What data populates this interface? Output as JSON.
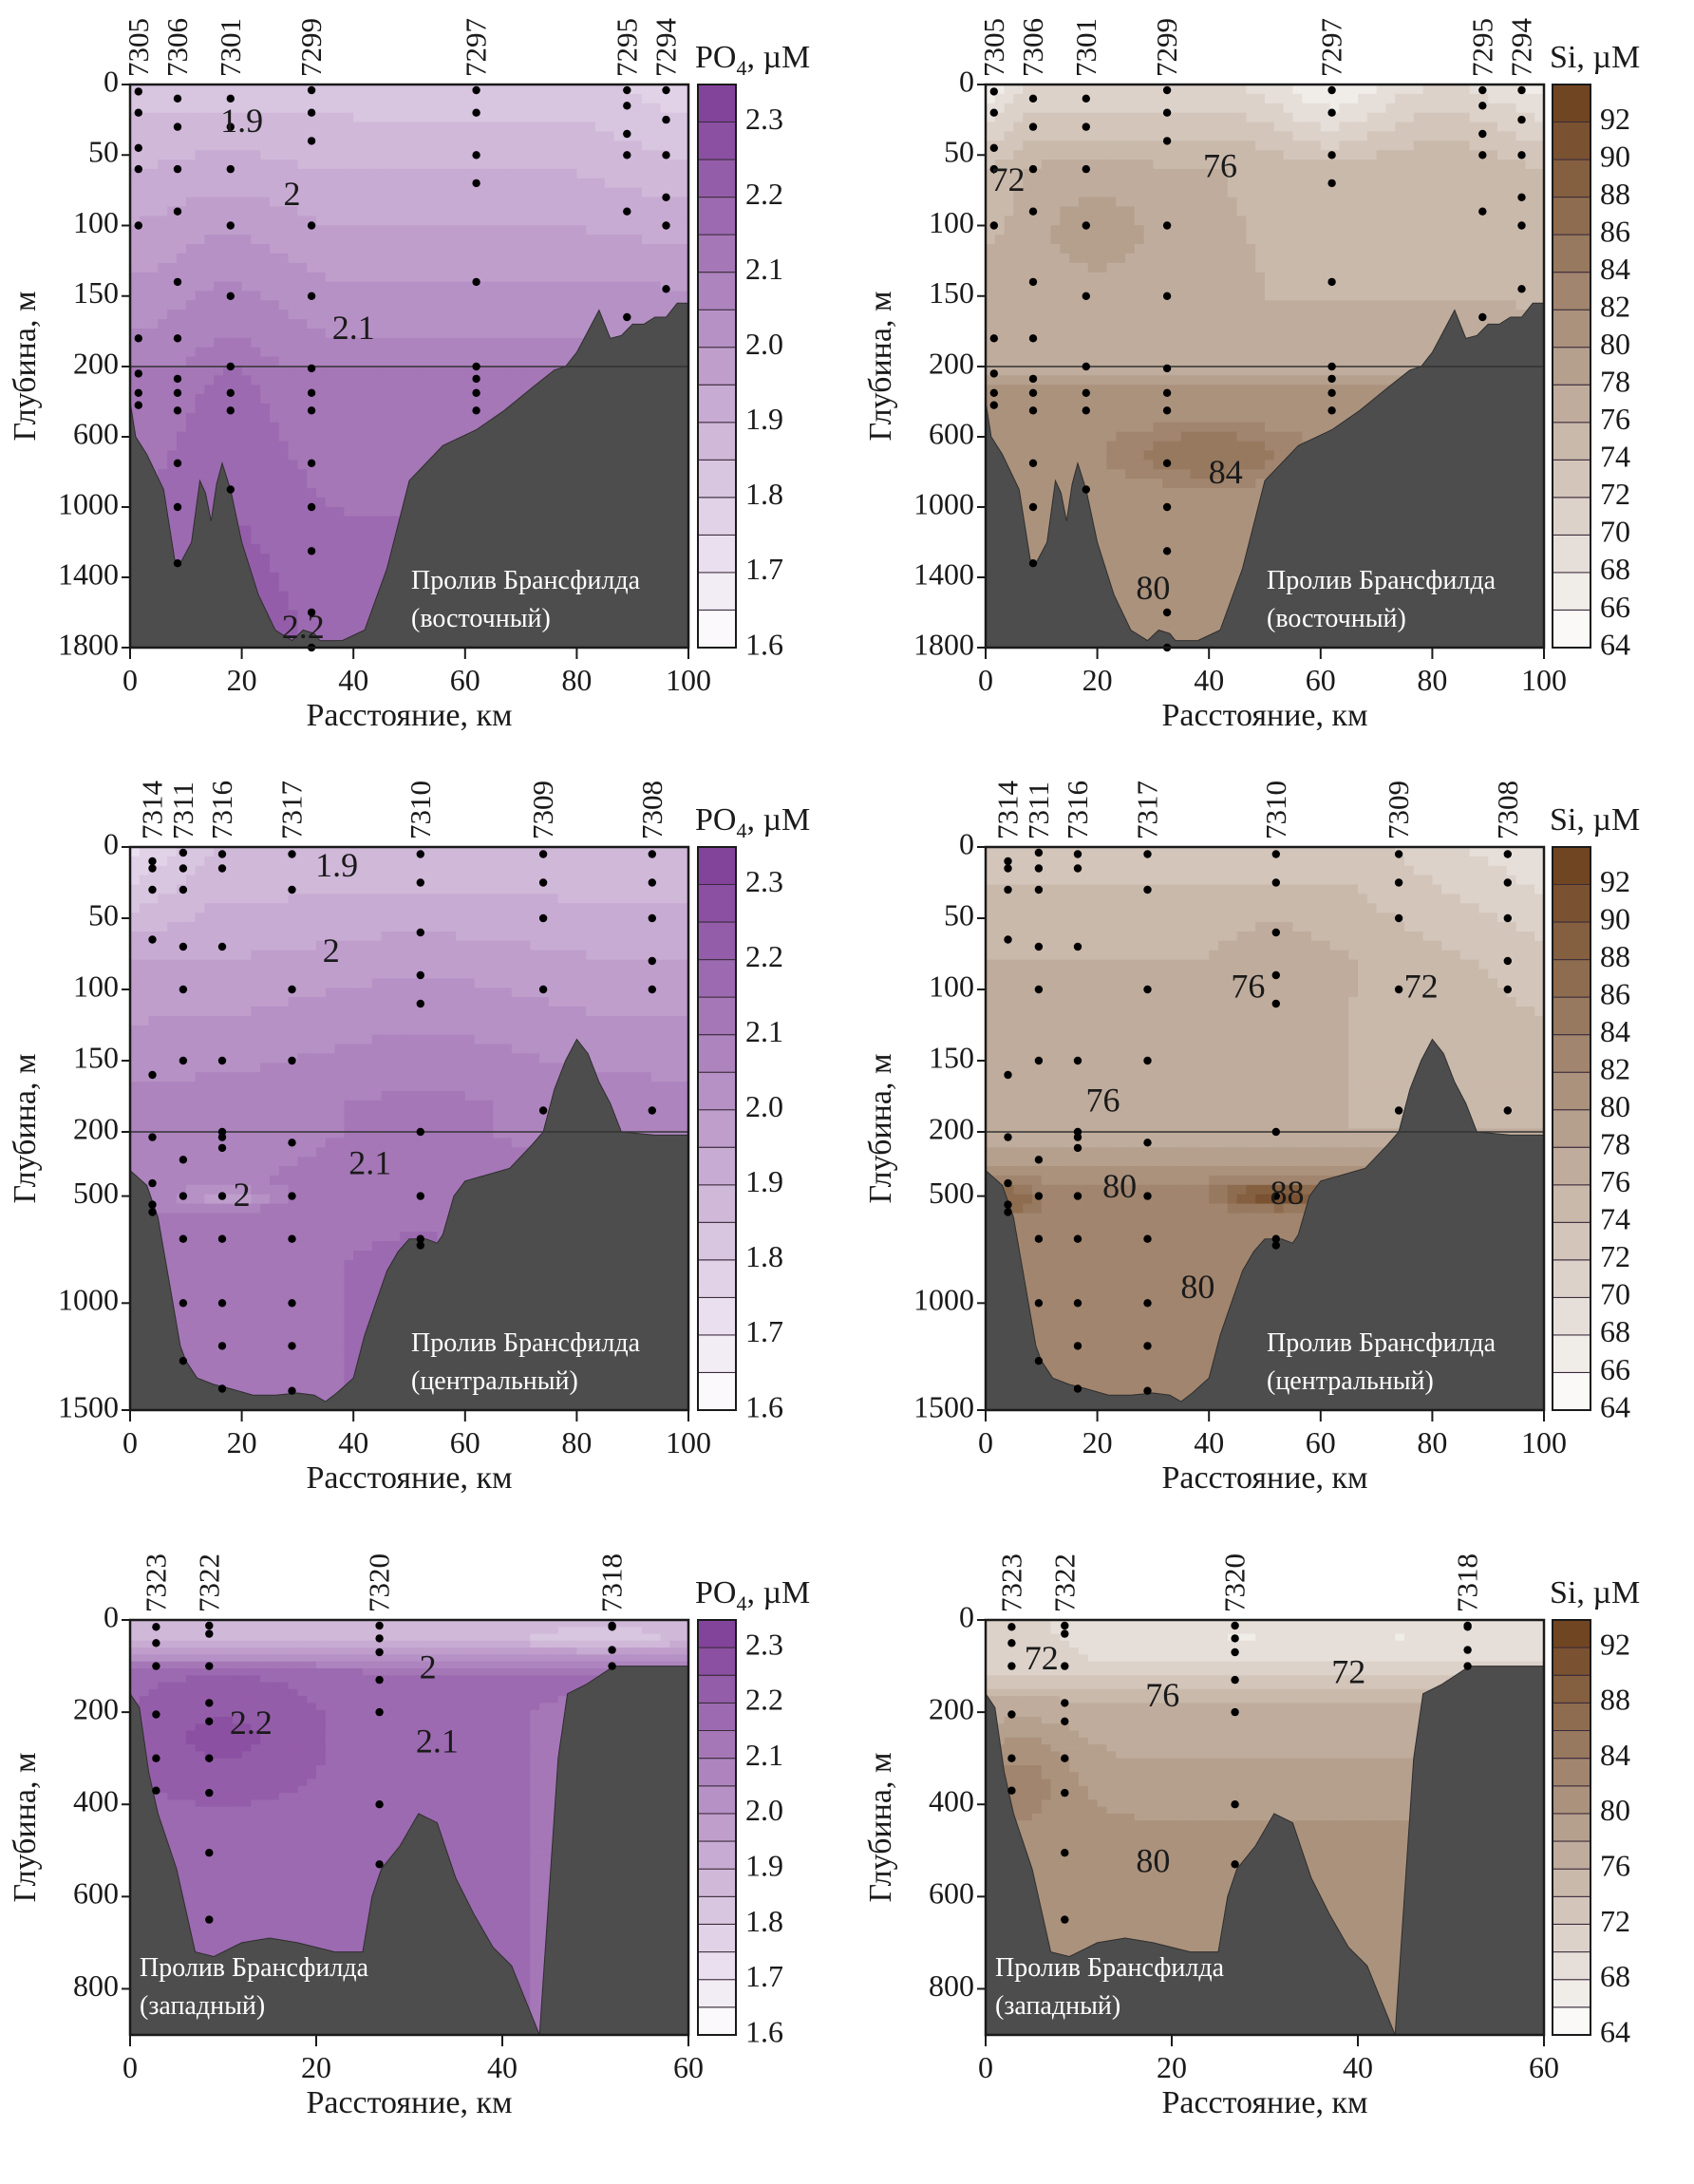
{
  "figure": {
    "ylabel": "Глубина, м",
    "xlabel": "Расстояние, км"
  },
  "colorbars": {
    "po4": {
      "title_main": "PO",
      "title_sub": "4",
      "title_unit": ", µM",
      "levels": [
        1.6,
        1.65,
        1.7,
        1.75,
        1.8,
        1.85,
        1.9,
        1.95,
        2.0,
        2.05,
        2.1,
        2.15,
        2.2,
        2.25,
        2.3,
        2.35
      ],
      "tick_labels": [
        "2.3",
        "2.2",
        "2.1",
        "2.0",
        "1.9",
        "1.8",
        "1.7",
        "1.6"
      ],
      "tick_values": [
        2.3,
        2.2,
        2.1,
        2.0,
        1.9,
        1.8,
        1.7,
        1.6
      ],
      "color_low": "#ffffff",
      "color_high": "#7e3d98"
    },
    "si": {
      "title_main": "Si",
      "title_sub": "",
      "title_unit": ", µM",
      "levels": [
        64,
        66,
        68,
        70,
        72,
        74,
        76,
        78,
        80,
        82,
        84,
        86,
        88,
        90,
        92,
        94
      ],
      "tick_labels_full": [
        "92",
        "90",
        "88",
        "86",
        "84",
        "82",
        "80",
        "78",
        "76",
        "74",
        "72",
        "70",
        "68",
        "66",
        "64"
      ],
      "tick_values_full": [
        92,
        90,
        88,
        86,
        84,
        82,
        80,
        78,
        76,
        74,
        72,
        70,
        68,
        66,
        64
      ],
      "tick_labels_sparse": [
        "92",
        "88",
        "84",
        "80",
        "76",
        "72",
        "68",
        "64"
      ],
      "tick_values_sparse": [
        92,
        88,
        84,
        80,
        76,
        72,
        68,
        64
      ],
      "color_low": "#ffffff",
      "color_high": "#6b3f1a"
    }
  },
  "colors": {
    "seafloor": "#4d4d4d",
    "station_dot": "#000000",
    "annotation_text": "#ffffff"
  },
  "chart_data": [
    {
      "id": "east-po4",
      "type": "heatmap",
      "variable": "po4",
      "title": "Пролив Брансфилда (восточный)",
      "annotation_line1": "Пролив Брансфилда",
      "annotation_line2": "(восточный)",
      "xlabel": "Расстояние, км",
      "ylabel": "Глубина, м",
      "xlim": [
        0,
        100
      ],
      "x_ticks": [
        0,
        20,
        40,
        60,
        80,
        100
      ],
      "y_axis_split": {
        "upper": [
          0,
          200
        ],
        "lower": [
          200,
          1800
        ]
      },
      "y_ticks": [
        0,
        50,
        100,
        150,
        200,
        600,
        1000,
        1400,
        1800
      ],
      "stations": [
        {
          "id": "7305",
          "x": 1.5,
          "depths": [
            5,
            20,
            45,
            60,
            100,
            180,
            240,
            350,
            420
          ]
        },
        {
          "id": "7306",
          "x": 8.5,
          "depths": [
            10,
            30,
            60,
            90,
            140,
            180,
            270,
            350,
            450,
            750,
            1000,
            1320
          ]
        },
        {
          "id": "7301",
          "x": 18,
          "depths": [
            10,
            30,
            60,
            100,
            150,
            200,
            350,
            450,
            900
          ]
        },
        {
          "id": "7299",
          "x": 32.5,
          "depths": [
            0,
            20,
            40,
            100,
            150,
            210,
            350,
            450,
            750,
            1000,
            1250,
            1600,
            1800
          ]
        },
        {
          "id": "7297",
          "x": 62,
          "depths": [
            0,
            20,
            50,
            70,
            140,
            200,
            270,
            350,
            450
          ]
        },
        {
          "id": "7295",
          "x": 89,
          "depths": [
            0,
            15,
            35,
            50,
            90,
            165
          ]
        },
        {
          "id": "7294",
          "x": 96,
          "depths": [
            0,
            25,
            50,
            80,
            100,
            145
          ]
        }
      ],
      "contour_labels": [
        {
          "text": "1.9",
          "x": 20,
          "y": 28
        },
        {
          "text": "2",
          "x": 29,
          "y": 80
        },
        {
          "text": "2.1",
          "x": 40,
          "y": 175
        },
        {
          "text": "2.2",
          "x": 31,
          "y": 1700
        }
      ],
      "value_range_observed": [
        1.8,
        2.25
      ]
    },
    {
      "id": "east-si",
      "type": "heatmap",
      "variable": "si",
      "title": "Пролив Брансфилда (восточный)",
      "annotation_line1": "Пролив Брансфилда",
      "annotation_line2": "(восточный)",
      "xlabel": "Расстояние, км",
      "ylabel": "Глубина, м",
      "xlim": [
        0,
        100
      ],
      "x_ticks": [
        0,
        20,
        40,
        60,
        80,
        100
      ],
      "y_axis_split": {
        "upper": [
          0,
          200
        ],
        "lower": [
          200,
          1800
        ]
      },
      "y_ticks": [
        0,
        50,
        100,
        150,
        200,
        600,
        1000,
        1400,
        1800
      ],
      "stations": [
        {
          "id": "7305",
          "x": 1.5,
          "depths": [
            5,
            20,
            45,
            60,
            100,
            180,
            240,
            350,
            420
          ]
        },
        {
          "id": "7306",
          "x": 8.5,
          "depths": [
            10,
            30,
            60,
            90,
            140,
            180,
            270,
            350,
            450,
            750,
            1000,
            1320
          ]
        },
        {
          "id": "7301",
          "x": 18,
          "depths": [
            10,
            30,
            60,
            100,
            150,
            200,
            350,
            450,
            900
          ]
        },
        {
          "id": "7299",
          "x": 32.5,
          "depths": [
            0,
            20,
            40,
            100,
            150,
            210,
            350,
            450,
            750,
            1000,
            1250,
            1600,
            1800
          ]
        },
        {
          "id": "7297",
          "x": 62,
          "depths": [
            0,
            20,
            50,
            70,
            140,
            200,
            270,
            350,
            450
          ]
        },
        {
          "id": "7295",
          "x": 89,
          "depths": [
            0,
            15,
            35,
            50,
            90,
            165
          ]
        },
        {
          "id": "7294",
          "x": 96,
          "depths": [
            0,
            25,
            50,
            80,
            100,
            145
          ]
        }
      ],
      "contour_labels": [
        {
          "text": "72",
          "x": 4,
          "y": 70
        },
        {
          "text": "76",
          "x": 42,
          "y": 60
        },
        {
          "text": "84",
          "x": 43,
          "y": 820
        },
        {
          "text": "80",
          "x": 30,
          "y": 1480
        }
      ],
      "value_range_observed": [
        68,
        86
      ]
    },
    {
      "id": "central-po4",
      "type": "heatmap",
      "variable": "po4",
      "title": "Пролив Брансфилда (центральный)",
      "annotation_line1": "Пролив Брансфилда",
      "annotation_line2": "(центральный)",
      "xlabel": "Расстояние, км",
      "ylabel": "Глубина, м",
      "xlim": [
        0,
        100
      ],
      "x_ticks": [
        0,
        20,
        40,
        60,
        80,
        100
      ],
      "y_axis_split": {
        "upper": [
          0,
          200
        ],
        "lower": [
          200,
          1500
        ]
      },
      "y_ticks": [
        0,
        50,
        100,
        150,
        200,
        500,
        1000,
        1500
      ],
      "stations": [
        {
          "id": "7314",
          "x": 4,
          "depths": [
            10,
            15,
            30,
            65,
            160,
            225,
            440,
            540,
            575
          ]
        },
        {
          "id": "7311",
          "x": 9.5,
          "depths": [
            0,
            15,
            30,
            70,
            100,
            150,
            330,
            500,
            700,
            1000,
            1270
          ]
        },
        {
          "id": "7316",
          "x": 16.5,
          "depths": [
            5,
            15,
            70,
            150,
            200,
            225,
            275,
            500,
            700,
            1000,
            1200,
            1400
          ]
        },
        {
          "id": "7317",
          "x": 29,
          "depths": [
            5,
            30,
            100,
            150,
            250,
            500,
            700,
            1000,
            1200,
            1410
          ]
        },
        {
          "id": "7310",
          "x": 52,
          "depths": [
            5,
            25,
            60,
            90,
            110,
            200,
            500,
            700,
            730
          ]
        },
        {
          "id": "7309",
          "x": 74,
          "depths": [
            5,
            25,
            50,
            100,
            185
          ]
        },
        {
          "id": "7308",
          "x": 93.5,
          "depths": [
            5,
            25,
            50,
            80,
            100,
            185
          ]
        }
      ],
      "contour_labels": [
        {
          "text": "1.9",
          "x": 37,
          "y": 15
        },
        {
          "text": "2",
          "x": 36,
          "y": 75
        },
        {
          "text": "2.1",
          "x": 43,
          "y": 360
        },
        {
          "text": "2",
          "x": 20,
          "y": 510
        }
      ],
      "value_range_observed": [
        1.7,
        2.2
      ]
    },
    {
      "id": "central-si",
      "type": "heatmap",
      "variable": "si",
      "title": "Пролив Брансфилда (центральный)",
      "annotation_line1": "Пролив Брансфилда",
      "annotation_line2": "(центральный)",
      "xlabel": "Расстояние, км",
      "ylabel": "Глубина, м",
      "xlim": [
        0,
        100
      ],
      "x_ticks": [
        0,
        20,
        40,
        60,
        80,
        100
      ],
      "y_axis_split": {
        "upper": [
          0,
          200
        ],
        "lower": [
          200,
          1500
        ]
      },
      "y_ticks": [
        0,
        50,
        100,
        150,
        200,
        500,
        1000,
        1500
      ],
      "stations": [
        {
          "id": "7314",
          "x": 4,
          "depths": [
            10,
            15,
            30,
            65,
            160,
            225,
            440,
            540,
            575
          ]
        },
        {
          "id": "7311",
          "x": 9.5,
          "depths": [
            0,
            15,
            30,
            70,
            100,
            150,
            330,
            500,
            700,
            1000,
            1270
          ]
        },
        {
          "id": "7316",
          "x": 16.5,
          "depths": [
            5,
            15,
            70,
            150,
            200,
            225,
            275,
            500,
            700,
            1000,
            1200,
            1400
          ]
        },
        {
          "id": "7317",
          "x": 29,
          "depths": [
            5,
            30,
            100,
            150,
            250,
            500,
            700,
            1000,
            1200,
            1410
          ]
        },
        {
          "id": "7310",
          "x": 52,
          "depths": [
            5,
            25,
            60,
            90,
            110,
            200,
            500,
            700,
            730
          ]
        },
        {
          "id": "7309",
          "x": 74,
          "depths": [
            5,
            25,
            50,
            100,
            185
          ]
        },
        {
          "id": "7308",
          "x": 93.5,
          "depths": [
            5,
            25,
            50,
            80,
            100,
            185
          ]
        }
      ],
      "contour_labels": [
        {
          "text": "76",
          "x": 47,
          "y": 100
        },
        {
          "text": "72",
          "x": 78,
          "y": 100
        },
        {
          "text": "76",
          "x": 21,
          "y": 180
        },
        {
          "text": "80",
          "x": 24,
          "y": 470
        },
        {
          "text": "88",
          "x": 54,
          "y": 500
        },
        {
          "text": "80",
          "x": 38,
          "y": 940
        }
      ],
      "value_range_observed": [
        68,
        90
      ]
    },
    {
      "id": "west-po4",
      "type": "heatmap",
      "variable": "po4",
      "title": "Пролив Брансфилда (западный)",
      "annotation_line1": "Пролив Брансфилда",
      "annotation_line2": "(западный)",
      "xlabel": "Расстояние, км",
      "ylabel": "Глубина, м",
      "xlim": [
        0,
        60
      ],
      "x_ticks": [
        0,
        20,
        40,
        60
      ],
      "ylim": [
        0,
        900
      ],
      "y_ticks": [
        0,
        200,
        400,
        600,
        800
      ],
      "stations": [
        {
          "id": "7323",
          "x": 2.8,
          "depths": [
            15,
            50,
            100,
            205,
            300,
            370
          ]
        },
        {
          "id": "7322",
          "x": 8.5,
          "depths": [
            0,
            30,
            100,
            180,
            220,
            300,
            375,
            505,
            650
          ]
        },
        {
          "id": "7320",
          "x": 26.8,
          "depths": [
            0,
            40,
            70,
            130,
            200,
            400,
            530
          ]
        },
        {
          "id": "7318",
          "x": 51.8,
          "depths": [
            0,
            15,
            65,
            100
          ]
        }
      ],
      "contour_labels": [
        {
          "text": "2",
          "x": 32,
          "y": 110
        },
        {
          "text": "2.2",
          "x": 13,
          "y": 230
        },
        {
          "text": "2.1",
          "x": 33,
          "y": 270
        }
      ],
      "value_range_observed": [
        1.8,
        2.25
      ]
    },
    {
      "id": "west-si",
      "type": "heatmap",
      "variable": "si",
      "title": "Пролив Брансфилда (западный)",
      "annotation_line1": "Пролив Брансфилда",
      "annotation_line2": "(западный)",
      "xlabel": "Расстояние, км",
      "ylabel": "Глубина, м",
      "xlim": [
        0,
        60
      ],
      "x_ticks": [
        0,
        20,
        40,
        60
      ],
      "ylim": [
        0,
        900
      ],
      "y_ticks": [
        0,
        200,
        400,
        600,
        800
      ],
      "stations": [
        {
          "id": "7323",
          "x": 2.8,
          "depths": [
            15,
            50,
            100,
            205,
            300,
            370
          ]
        },
        {
          "id": "7322",
          "x": 8.5,
          "depths": [
            0,
            30,
            100,
            180,
            220,
            300,
            375,
            505,
            650
          ]
        },
        {
          "id": "7320",
          "x": 26.8,
          "depths": [
            0,
            40,
            70,
            130,
            200,
            400,
            530
          ]
        },
        {
          "id": "7318",
          "x": 51.8,
          "depths": [
            0,
            15,
            65,
            100
          ]
        }
      ],
      "contour_labels": [
        {
          "text": "72",
          "x": 6,
          "y": 90
        },
        {
          "text": "76",
          "x": 19,
          "y": 170
        },
        {
          "text": "72",
          "x": 39,
          "y": 120
        },
        {
          "text": "80",
          "x": 18,
          "y": 530
        }
      ],
      "value_range_observed": [
        68,
        84
      ]
    }
  ]
}
